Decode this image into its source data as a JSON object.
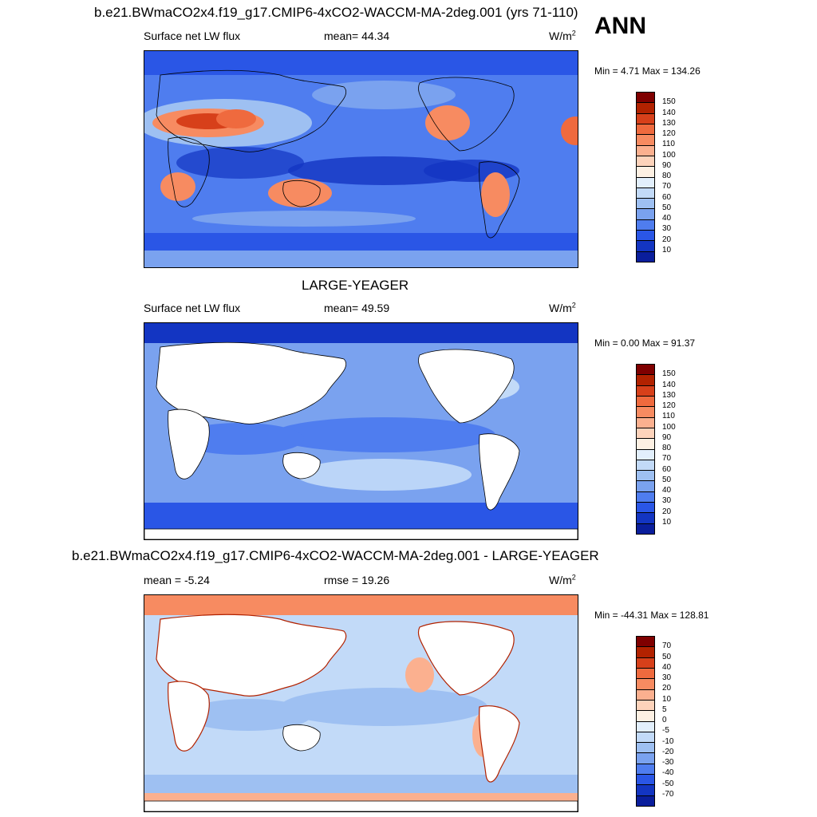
{
  "header": {
    "case_title": "b.e21.BWmaCO2x4.f19_g17.CMIP6-4xCO2-WACCM-MA-2deg.001 (yrs 71-110)",
    "season": "ANN"
  },
  "panels": [
    {
      "id": "model",
      "title": "",
      "left_label": "Surface net LW flux",
      "center_label": "mean=  44.34",
      "units": "W/m",
      "units_sup": "2",
      "minmax": "Min =   4.71 Max = 134.26",
      "colorbar_labels": [
        "150",
        "140",
        "130",
        "120",
        "110",
        "100",
        "90",
        "80",
        "70",
        "60",
        "50",
        "40",
        "30",
        "20",
        "10"
      ]
    },
    {
      "id": "obs",
      "title": "LARGE-YEAGER",
      "left_label": "Surface net LW flux",
      "center_label": "mean=  49.59",
      "units": "W/m",
      "units_sup": "2",
      "minmax": "Min =   0.00 Max =  91.37",
      "colorbar_labels": [
        "150",
        "140",
        "130",
        "120",
        "110",
        "100",
        "90",
        "80",
        "70",
        "60",
        "50",
        "40",
        "30",
        "20",
        "10"
      ]
    },
    {
      "id": "diff",
      "title": "b.e21.BWmaCO2x4.f19_g17.CMIP6-4xCO2-WACCM-MA-2deg.001 - LARGE-YEAGER",
      "left_label": "mean =  -5.24",
      "center_label": "rmse =  19.26",
      "units": "W/m",
      "units_sup": "2",
      "minmax": "Min = -44.31 Max = 128.81",
      "colorbar_labels": [
        "70",
        "50",
        "40",
        "30",
        "20",
        "10",
        "5",
        "0",
        "-5",
        "-10",
        "-20",
        "-30",
        "-40",
        "-50",
        "-70"
      ]
    }
  ],
  "colors": {
    "abs_scale": [
      "#7f0000",
      "#b22200",
      "#d7401a",
      "#ef6a3e",
      "#f78b61",
      "#fbb08f",
      "#fdd3bb",
      "#fdf0e3",
      "#e2effc",
      "#c2daf8",
      "#9ec0f2",
      "#7aa2ef",
      "#4f7def",
      "#2a56e6",
      "#1335c2",
      "#0a1e9c"
    ],
    "diff_scale": [
      "#7f0000",
      "#b22200",
      "#d7401a",
      "#ef6a3e",
      "#f78b61",
      "#fbb08f",
      "#fdd3bb",
      "#fdf0e3",
      "#e2effc",
      "#c2daf8",
      "#9ec0f2",
      "#7aa2ef",
      "#4f7def",
      "#2a56e6",
      "#1335c2",
      "#0a1e9c"
    ],
    "land_mask": "#ffffff",
    "coastline": "#000000"
  }
}
